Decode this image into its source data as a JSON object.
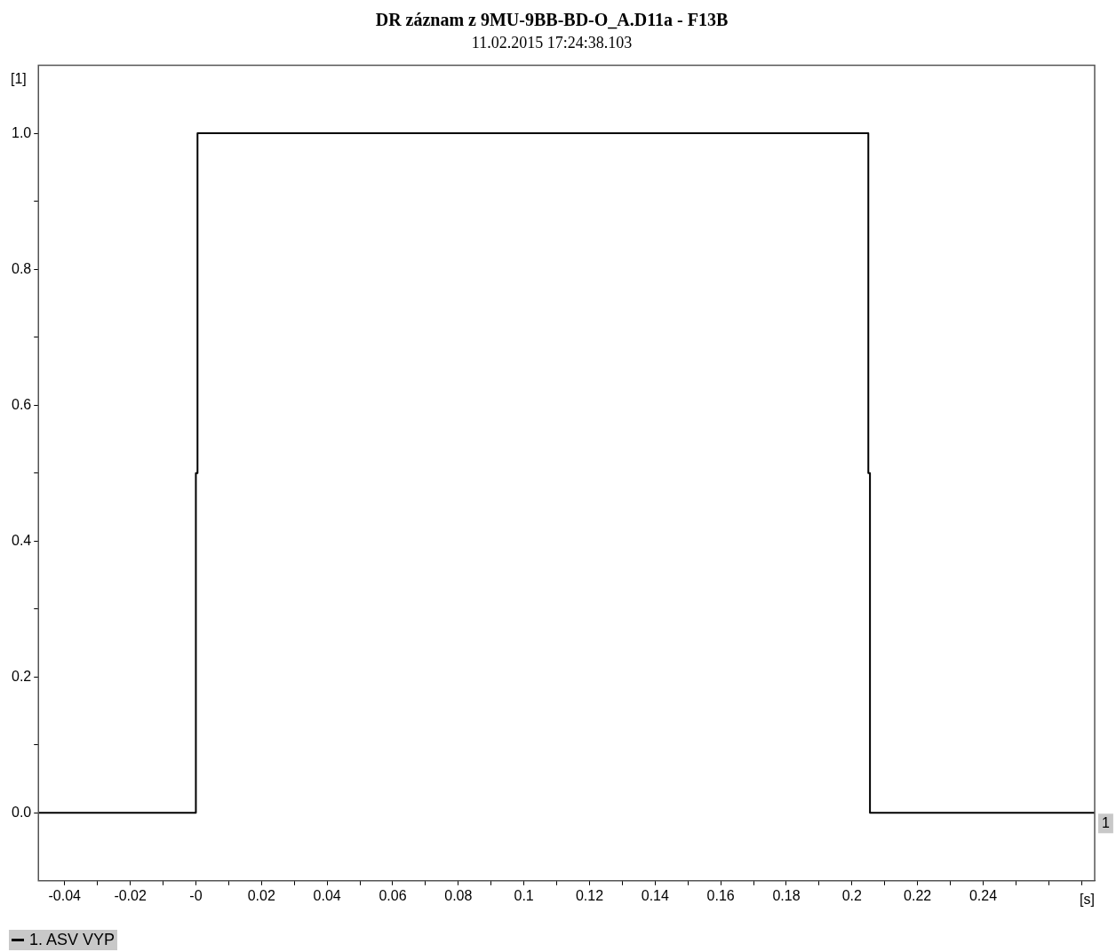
{
  "chart_data": {
    "type": "step",
    "title": "DR záznam z 9MU-9BB-BD-O_A.D11a - F13B",
    "subtitle": "11.02.2015 17:24:38.103",
    "xlabel": "[s]",
    "ylabel": "[1]",
    "series": [
      {
        "name": "1. ASV VYP",
        "color": "#000000",
        "x": [
          -0.048,
          0,
          0.0005,
          0.205,
          0.2055,
          0.274
        ],
        "values": [
          0,
          0.5,
          1,
          0.5,
          0,
          0
        ]
      }
    ],
    "xlim": [
      -0.048,
      0.274
    ],
    "xticks": [
      {
        "value": -0.04,
        "label": "-0.04"
      },
      {
        "value": -0.03,
        "label": null
      },
      {
        "value": -0.02,
        "label": "-0.02"
      },
      {
        "value": -0.01,
        "label": null
      },
      {
        "value": 0,
        "label": "-0"
      },
      {
        "value": 0.01,
        "label": null
      },
      {
        "value": 0.02,
        "label": "0.02"
      },
      {
        "value": 0.03,
        "label": null
      },
      {
        "value": 0.04,
        "label": "0.04"
      },
      {
        "value": 0.05,
        "label": null
      },
      {
        "value": 0.06,
        "label": "0.06"
      },
      {
        "value": 0.07,
        "label": null
      },
      {
        "value": 0.08,
        "label": "0.08"
      },
      {
        "value": 0.09,
        "label": null
      },
      {
        "value": 0.1,
        "label": "0.1"
      },
      {
        "value": 0.11,
        "label": null
      },
      {
        "value": 0.12,
        "label": "0.12"
      },
      {
        "value": 0.13,
        "label": null
      },
      {
        "value": 0.14,
        "label": "0.14"
      },
      {
        "value": 0.15,
        "label": null
      },
      {
        "value": 0.16,
        "label": "0.16"
      },
      {
        "value": 0.17,
        "label": null
      },
      {
        "value": 0.18,
        "label": "0.18"
      },
      {
        "value": 0.19,
        "label": null
      },
      {
        "value": 0.2,
        "label": "0.2"
      },
      {
        "value": 0.21,
        "label": null
      },
      {
        "value": 0.22,
        "label": "0.22"
      },
      {
        "value": 0.23,
        "label": null
      },
      {
        "value": 0.24,
        "label": "0.24"
      },
      {
        "value": 0.25,
        "label": null
      },
      {
        "value": 0.26,
        "label": null
      },
      {
        "value": 0.27,
        "label": null
      }
    ],
    "ylim": [
      -0.1,
      1.1
    ],
    "yticks": [
      {
        "value": 0,
        "label": "0.0"
      },
      {
        "value": 0.1,
        "label": null
      },
      {
        "value": 0.2,
        "label": "0.2"
      },
      {
        "value": 0.3,
        "label": null
      },
      {
        "value": 0.4,
        "label": "0.4"
      },
      {
        "value": 0.5,
        "label": null
      },
      {
        "value": 0.6,
        "label": "0.6"
      },
      {
        "value": 0.7,
        "label": null
      },
      {
        "value": 0.8,
        "label": "0.8"
      },
      {
        "value": 0.9,
        "label": null
      },
      {
        "value": 1,
        "label": "1.0"
      }
    ],
    "annotations": [
      {
        "text": "1",
        "x": 0.274,
        "y": 0
      }
    ],
    "grid": false,
    "legend": "bottom left",
    "marker": "none",
    "line_style": "solid"
  }
}
